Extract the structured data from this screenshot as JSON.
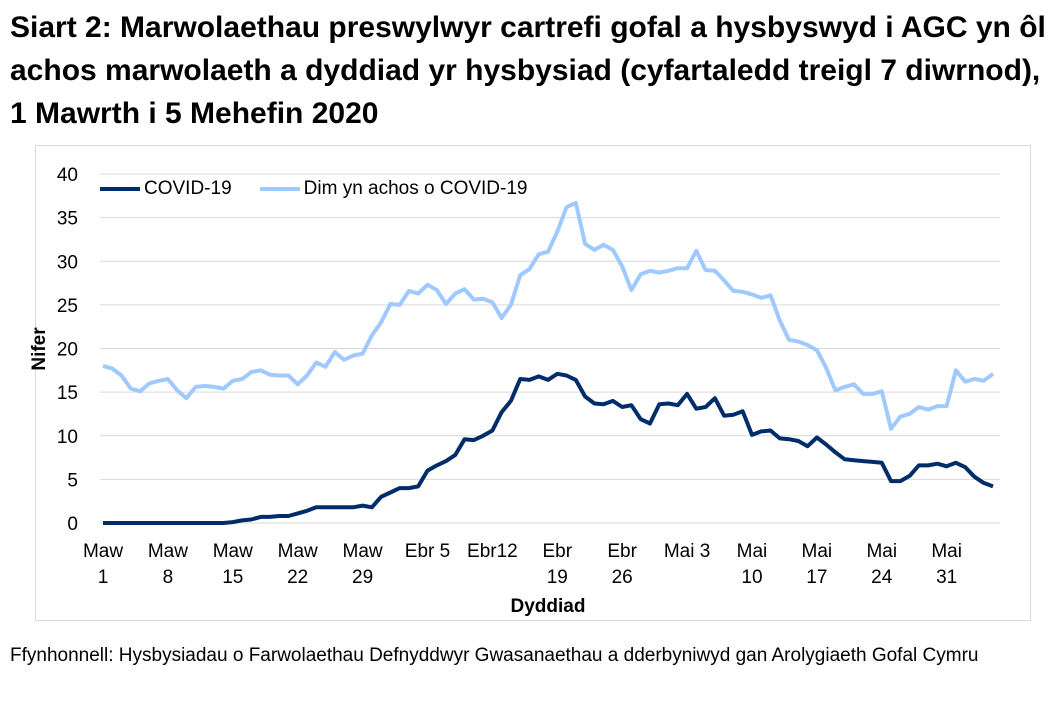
{
  "title": "Siart 2: Marwolaethau preswylwyr cartrefi gofal a hysbyswyd i AGC yn ôl achos marwolaeth a dyddiad yr hysbysiad (cyfartaledd treigl 7 diwrnod), 1 Mawrth i 5 Mehefin 2020",
  "source": "Ffynhonnell: Hysbysiadau o Farwolaethau Defnyddwyr Gwasanaethau a dderbyniwyd gan Arolygiaeth Gofal Cymru",
  "chart_data": {
    "type": "line",
    "title": "",
    "xlabel": "Dyddiad",
    "ylabel": "Nifer",
    "ylim": [
      0,
      40
    ],
    "yticks": [
      0,
      5,
      10,
      15,
      20,
      25,
      30,
      35,
      40
    ],
    "x_start": "2020-03-01",
    "x_end": "2020-06-05",
    "xtick_labels": [
      "Maw\n1",
      "Maw\n8",
      "Maw\n15",
      "Maw\n22",
      "Maw\n29",
      "Ebr 5",
      "Ebr12",
      "Ebr\n19",
      "Ebr\n26",
      "Mai 3",
      "Mai\n10",
      "Mai\n17",
      "Mai\n24",
      "Mai\n31"
    ],
    "grid": "horizontal",
    "legend_position": "top-left",
    "series": [
      {
        "name": "COVID-19",
        "color": "#002d6a",
        "values": [
          0,
          0,
          0,
          0,
          0,
          0,
          0,
          0,
          0,
          0,
          0,
          0,
          0,
          0,
          0.1,
          0.3,
          0.4,
          0.7,
          0.7,
          0.8,
          0.8,
          1.1,
          1.4,
          1.8,
          1.8,
          1.8,
          1.8,
          1.8,
          2.0,
          1.8,
          3.0,
          3.5,
          4.0,
          4.0,
          4.2,
          6.0,
          6.6,
          7.1,
          7.8,
          9.6,
          9.5,
          10.0,
          10.6,
          12.7,
          14.0,
          16.5,
          16.4,
          16.8,
          16.4,
          17.1,
          16.9,
          16.4,
          14.5,
          13.7,
          13.6,
          14.0,
          13.3,
          13.5,
          11.9,
          11.4,
          13.6,
          13.7,
          13.5,
          14.8,
          13.1,
          13.3,
          14.3,
          12.3,
          12.4,
          12.8,
          10.1,
          10.5,
          10.6,
          9.7,
          9.6,
          9.4,
          8.8,
          9.8,
          9.0,
          8.1,
          7.3,
          7.2,
          7.1,
          7.0,
          6.9,
          4.8,
          4.8,
          5.4,
          6.6,
          6.6,
          6.8,
          6.5,
          6.9,
          6.4,
          5.3,
          4.6,
          4.2
        ]
      },
      {
        "name": "Dim yn achos o COVID-19",
        "color": "#9fc9ff",
        "values": [
          18.0,
          17.7,
          16.9,
          15.4,
          15.1,
          16.0,
          16.3,
          16.5,
          15.2,
          14.3,
          15.6,
          15.7,
          15.6,
          15.4,
          16.3,
          16.5,
          17.3,
          17.5,
          17.0,
          16.9,
          16.9,
          15.9,
          16.9,
          18.4,
          17.9,
          19.6,
          18.7,
          19.2,
          19.4,
          21.5,
          23.0,
          25.1,
          25.0,
          26.6,
          26.3,
          27.3,
          26.7,
          25.1,
          26.3,
          26.8,
          25.6,
          25.7,
          25.3,
          23.5,
          25.0,
          28.4,
          29.1,
          30.8,
          31.1,
          33.4,
          36.2,
          36.7,
          32.0,
          31.3,
          31.9,
          31.3,
          29.4,
          26.7,
          28.5,
          28.9,
          28.7,
          28.9,
          29.2,
          29.2,
          31.2,
          29.0,
          28.9,
          27.8,
          26.6,
          26.5,
          26.2,
          25.8,
          26.1,
          23.2,
          21.0,
          20.8,
          20.4,
          19.8,
          17.8,
          15.2,
          15.6,
          15.9,
          14.8,
          14.8,
          15.1,
          10.8,
          12.2,
          12.5,
          13.3,
          13.0,
          13.4,
          13.4,
          17.5,
          16.2,
          16.5,
          16.3,
          17.1
        ]
      }
    ]
  }
}
